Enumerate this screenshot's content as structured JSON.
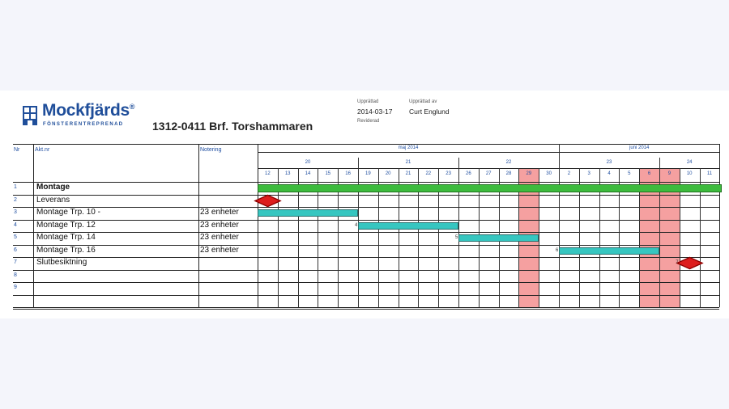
{
  "header": {
    "brand": "Mockfjärds",
    "brand_reg": "®",
    "brand_sub": "FÖNSTERENTREPRENAD",
    "project_title": "1312-0411 Brf. Torshammaren",
    "created_label": "Upprättad",
    "created_date": "2014-03-17",
    "created_by_label": "Upprättad av",
    "created_by": "Curt Englund",
    "revised_label": "Reviderad"
  },
  "columns": {
    "nr": "Nr",
    "akt": "Akt.nr",
    "note": "Notering"
  },
  "months": [
    {
      "label": "maj 2014"
    },
    {
      "label": "juni 2014"
    }
  ],
  "weeks": [
    "20",
    "21",
    "22",
    "23",
    "24"
  ],
  "days": [
    "12",
    "13",
    "14",
    "15",
    "16",
    "19",
    "20",
    "21",
    "22",
    "23",
    "26",
    "27",
    "28",
    "29",
    "30",
    "2",
    "3",
    "4",
    "5",
    "6",
    "9",
    "10",
    "11"
  ],
  "shaded_day_indices": [
    13,
    19,
    20
  ],
  "rows": [
    {
      "nr": "1",
      "name": "Montage",
      "note": "",
      "bold": true,
      "bar": {
        "type": "summary",
        "start": 0,
        "end": 22
      }
    },
    {
      "nr": "2",
      "name": "Leverans",
      "note": "",
      "bar": {
        "type": "milestone",
        "at": 0
      }
    },
    {
      "nr": "3",
      "name": "Montage Trp. 10 -",
      "note": "23 enheter",
      "bar": {
        "type": "task",
        "start": 0,
        "end": 4,
        "label": ""
      }
    },
    {
      "nr": "4",
      "name": "Montage Trp. 12",
      "note": "23 enheter",
      "bar": {
        "type": "task",
        "start": 5,
        "end": 9,
        "label": "4"
      }
    },
    {
      "nr": "5",
      "name": "Montage Trp. 14",
      "note": "23 enheter",
      "bar": {
        "type": "task",
        "start": 10,
        "end": 13,
        "label": "5"
      }
    },
    {
      "nr": "6",
      "name": "Montage Trp. 16",
      "note": "23 enheter",
      "bar": {
        "type": "task",
        "start": 15,
        "end": 19,
        "label": "6"
      }
    },
    {
      "nr": "7",
      "name": "Slutbesiktning",
      "note": "",
      "bar": {
        "type": "milestone",
        "at": 21,
        "label": "7"
      }
    },
    {
      "nr": "8",
      "name": "",
      "note": ""
    },
    {
      "nr": "9",
      "name": "",
      "note": ""
    },
    {
      "nr": "",
      "name": "",
      "note": ""
    }
  ]
}
